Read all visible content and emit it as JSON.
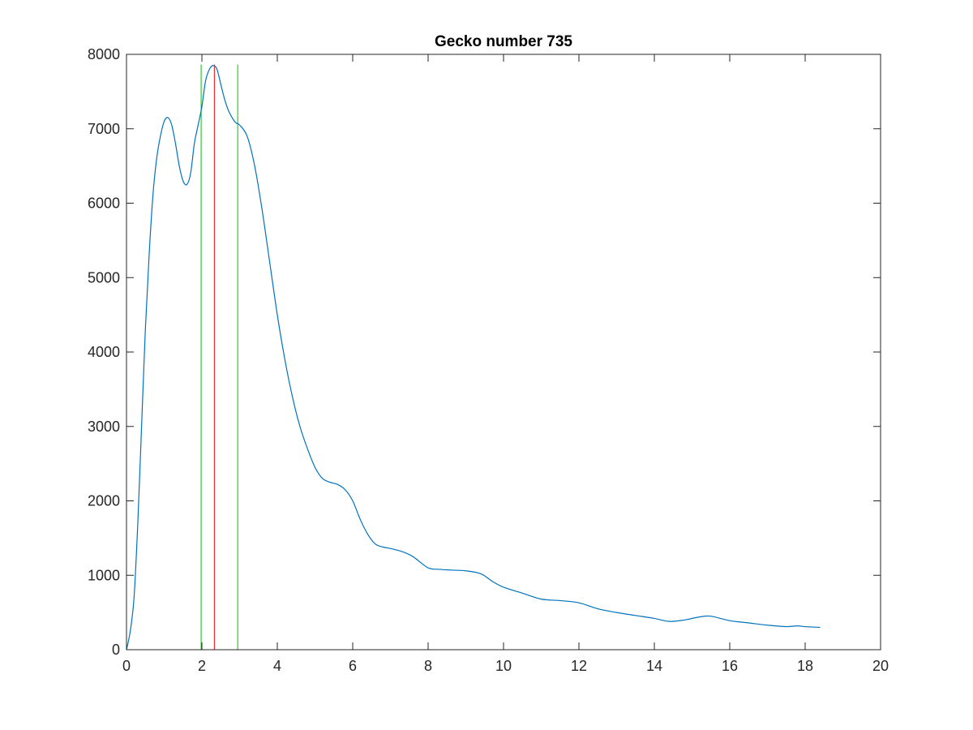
{
  "chart_data": {
    "type": "line",
    "title": "Gecko number 735",
    "xlabel": "",
    "ylabel": "",
    "xlim": [
      0,
      20
    ],
    "ylim": [
      0,
      8000
    ],
    "xticks": [
      0,
      2,
      4,
      6,
      8,
      10,
      12,
      14,
      16,
      18,
      20
    ],
    "yticks": [
      0,
      1000,
      2000,
      3000,
      4000,
      5000,
      6000,
      7000,
      8000
    ],
    "grid": false,
    "box": true,
    "series": [
      {
        "color": "#0072BD",
        "x": [
          0,
          0.1,
          0.2,
          0.3,
          0.4,
          0.5,
          0.6,
          0.7,
          0.8,
          0.9,
          1.0,
          1.1,
          1.2,
          1.3,
          1.4,
          1.5,
          1.6,
          1.7,
          1.8,
          1.9,
          2.0,
          2.1,
          2.2,
          2.3,
          2.4,
          2.5,
          2.6,
          2.7,
          2.8,
          2.9,
          3.0,
          3.2,
          3.4,
          3.6,
          3.8,
          4.0,
          4.2,
          4.4,
          4.6,
          4.8,
          5.0,
          5.2,
          5.4,
          5.6,
          5.8,
          6.0,
          6.2,
          6.4,
          6.6,
          6.8,
          7.0,
          7.3,
          7.6,
          8.0,
          8.3,
          8.6,
          9.0,
          9.4,
          9.7,
          10.0,
          10.5,
          11.0,
          11.5,
          12.0,
          12.5,
          13.0,
          13.5,
          14.0,
          14.4,
          14.8,
          15.2,
          15.5,
          16.0,
          16.5,
          17.0,
          17.5,
          17.8,
          18.0,
          18.4
        ],
        "values": [
          0,
          250,
          700,
          1700,
          3000,
          4300,
          5300,
          6100,
          6600,
          6900,
          7100,
          7150,
          7050,
          6800,
          6500,
          6300,
          6250,
          6400,
          6800,
          7050,
          7300,
          7650,
          7800,
          7850,
          7800,
          7600,
          7400,
          7250,
          7150,
          7080,
          7050,
          6900,
          6500,
          5900,
          5200,
          4500,
          3900,
          3400,
          3000,
          2700,
          2450,
          2300,
          2250,
          2220,
          2150,
          2000,
          1750,
          1550,
          1420,
          1380,
          1360,
          1320,
          1250,
          1100,
          1080,
          1070,
          1060,
          1020,
          920,
          840,
          760,
          680,
          660,
          630,
          550,
          500,
          460,
          420,
          380,
          400,
          440,
          450,
          390,
          360,
          330,
          310,
          320,
          310,
          300
        ]
      }
    ],
    "vlines": [
      {
        "x": 1.98,
        "color": "#00C000"
      },
      {
        "x": 2.33,
        "color": "#FF0000"
      },
      {
        "x": 2.95,
        "color": "#00C000"
      }
    ]
  }
}
